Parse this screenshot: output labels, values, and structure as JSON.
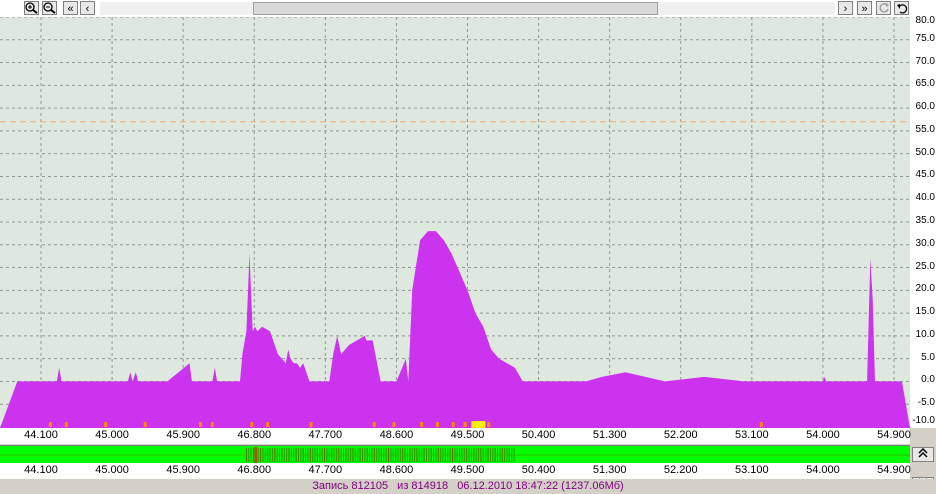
{
  "toolbar": {
    "zoom_in_icon": "zoom-in-icon",
    "zoom_out_icon": "zoom-out-icon",
    "first_label": "«",
    "prev_label": "‹",
    "next_label": "›",
    "last_label": "»"
  },
  "chart_data": {
    "type": "area",
    "title": "",
    "xlabel": "",
    "ylabel": "",
    "xlim": [
      43.8,
      55.0
    ],
    "ylim": [
      -10.0,
      80.0
    ],
    "y_ticks": [
      "80.0",
      "75.0",
      "70.0",
      "65.0",
      "60.0",
      "55.0",
      "50.0",
      "45.0",
      "40.0",
      "35.0",
      "30.0",
      "25.0",
      "20.0",
      "15.0",
      "10.0",
      "5.0",
      "0.0",
      "-5.0",
      "-10.0"
    ],
    "x_ticks": [
      "44.100",
      "45.000",
      "45.900",
      "46.800",
      "47.700",
      "48.600",
      "49.500",
      "50.400",
      "51.300",
      "52.200",
      "53.100",
      "54.000",
      "54.900"
    ],
    "threshold": 57.0,
    "grid": true,
    "series": [
      {
        "color": "#cc33ee",
        "x": [
          43.8,
          44.3,
          44.33,
          44.36,
          44.4,
          45.2,
          45.23,
          45.26,
          45.3,
          45.33,
          45.36,
          45.7,
          45.98,
          46.01,
          46.04,
          46.27,
          46.3,
          46.33,
          46.62,
          46.65,
          46.7,
          46.74,
          46.78,
          46.81,
          46.84,
          46.9,
          47.0,
          47.1,
          47.2,
          47.23,
          47.26,
          47.3,
          47.34,
          47.38,
          47.42,
          47.5,
          47.6,
          47.75,
          47.8,
          47.85,
          47.9,
          48.0,
          48.2,
          48.22,
          48.26,
          48.3,
          48.4,
          48.5,
          48.6,
          48.72,
          48.75,
          48.8,
          48.9,
          49.0,
          49.1,
          49.2,
          49.3,
          49.4,
          49.5,
          49.6,
          49.7,
          49.8,
          49.9,
          50.0,
          50.1,
          50.2,
          50.3,
          50.4,
          50.5,
          51.0,
          51.2,
          51.5,
          52.0,
          52.5,
          53.0,
          53.5,
          54.0,
          54.02,
          54.04,
          54.1,
          54.5,
          54.56,
          54.6,
          54.63,
          54.66,
          54.9,
          55.0
        ],
        "y": [
          0,
          0,
          3,
          0,
          0,
          0,
          2,
          0,
          2,
          0,
          0,
          0,
          4,
          0,
          0,
          0,
          3,
          0,
          0,
          6,
          11,
          28,
          11,
          12,
          11,
          12,
          11,
          6,
          4,
          7,
          5,
          4,
          4,
          3,
          4,
          0,
          0,
          0,
          6,
          10,
          6,
          8,
          10,
          9,
          9,
          9,
          0,
          0,
          0,
          5,
          0,
          20,
          31,
          33,
          33,
          31,
          28,
          24,
          20,
          15,
          12,
          7,
          5,
          4,
          3,
          0,
          0,
          0,
          0,
          0,
          1,
          2,
          0,
          1,
          0,
          0,
          0,
          1,
          0,
          0,
          0,
          0,
          27,
          18,
          0,
          0,
          0
        ]
      }
    ]
  },
  "overview_x_ticks": [
    "44.100",
    "45.000",
    "45.900",
    "46.800",
    "47.700",
    "48.600",
    "49.500",
    "50.400",
    "51.300",
    "52.200",
    "53.100",
    "54.000",
    "54.900"
  ],
  "status": {
    "record_label": "Запись 812105",
    "of_label": "из 814918",
    "datetime": "06.12.2010 18:47:22 (1237.06Мб)"
  },
  "colors": {
    "plot_bg": "#dfe8df",
    "fill": "#cc33ee",
    "overview": "#00ff00"
  }
}
